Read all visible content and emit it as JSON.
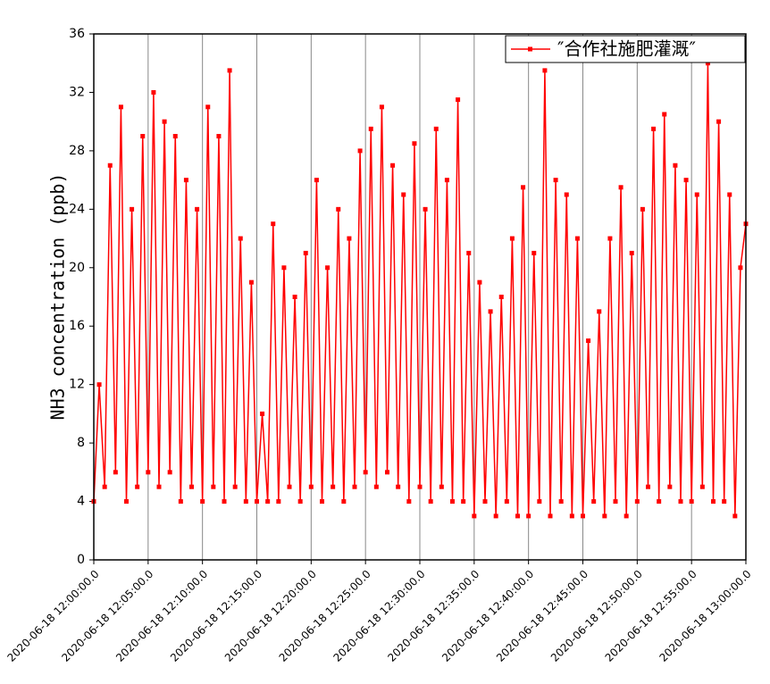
{
  "chart_data": {
    "type": "line",
    "y_label": "NH3 concentration (ppb)",
    "x": [
      "2020-06-18 12:00:00.0",
      "2020-06-18 12:00:30.0",
      "2020-06-18 12:01:00.0",
      "2020-06-18 12:01:30.0",
      "2020-06-18 12:02:00.0",
      "2020-06-18 12:02:30.0",
      "2020-06-18 12:03:00.0",
      "2020-06-18 12:03:30.0",
      "2020-06-18 12:04:00.0",
      "2020-06-18 12:04:30.0",
      "2020-06-18 12:05:00.0",
      "2020-06-18 12:05:30.0",
      "2020-06-18 12:06:00.0",
      "2020-06-18 12:06:30.0",
      "2020-06-18 12:07:00.0",
      "2020-06-18 12:07:30.0",
      "2020-06-18 12:08:00.0",
      "2020-06-18 12:08:30.0",
      "2020-06-18 12:09:00.0",
      "2020-06-18 12:09:30.0",
      "2020-06-18 12:10:00.0",
      "2020-06-18 12:10:30.0",
      "2020-06-18 12:11:00.0",
      "2020-06-18 12:11:30.0",
      "2020-06-18 12:12:00.0",
      "2020-06-18 12:12:30.0",
      "2020-06-18 12:13:00.0",
      "2020-06-18 12:13:30.0",
      "2020-06-18 12:14:00.0",
      "2020-06-18 12:14:30.0",
      "2020-06-18 12:15:00.0",
      "2020-06-18 12:15:30.0",
      "2020-06-18 12:16:00.0",
      "2020-06-18 12:16:30.0",
      "2020-06-18 12:17:00.0",
      "2020-06-18 12:17:30.0",
      "2020-06-18 12:18:00.0",
      "2020-06-18 12:18:30.0",
      "2020-06-18 12:19:00.0",
      "2020-06-18 12:19:30.0",
      "2020-06-18 12:20:00.0",
      "2020-06-18 12:20:30.0",
      "2020-06-18 12:21:00.0",
      "2020-06-18 12:21:30.0",
      "2020-06-18 12:22:00.0",
      "2020-06-18 12:22:30.0",
      "2020-06-18 12:23:00.0",
      "2020-06-18 12:23:30.0",
      "2020-06-18 12:24:00.0",
      "2020-06-18 12:24:30.0",
      "2020-06-18 12:25:00.0",
      "2020-06-18 12:25:30.0",
      "2020-06-18 12:26:00.0",
      "2020-06-18 12:26:30.0",
      "2020-06-18 12:27:00.0",
      "2020-06-18 12:27:30.0",
      "2020-06-18 12:28:00.0",
      "2020-06-18 12:28:30.0",
      "2020-06-18 12:29:00.0",
      "2020-06-18 12:29:30.0",
      "2020-06-18 12:30:00.0",
      "2020-06-18 12:30:30.0",
      "2020-06-18 12:31:00.0",
      "2020-06-18 12:31:30.0",
      "2020-06-18 12:32:00.0",
      "2020-06-18 12:32:30.0",
      "2020-06-18 12:33:00.0",
      "2020-06-18 12:33:30.0",
      "2020-06-18 12:34:00.0",
      "2020-06-18 12:34:30.0",
      "2020-06-18 12:35:00.0",
      "2020-06-18 12:35:30.0",
      "2020-06-18 12:36:00.0",
      "2020-06-18 12:36:30.0",
      "2020-06-18 12:37:00.0",
      "2020-06-18 12:37:30.0",
      "2020-06-18 12:38:00.0",
      "2020-06-18 12:38:30.0",
      "2020-06-18 12:39:00.0",
      "2020-06-18 12:39:30.0",
      "2020-06-18 12:40:00.0",
      "2020-06-18 12:40:30.0",
      "2020-06-18 12:41:00.0",
      "2020-06-18 12:41:30.0",
      "2020-06-18 12:42:00.0",
      "2020-06-18 12:42:30.0",
      "2020-06-18 12:43:00.0",
      "2020-06-18 12:43:30.0",
      "2020-06-18 12:44:00.0",
      "2020-06-18 12:44:30.0",
      "2020-06-18 12:45:00.0",
      "2020-06-18 12:45:30.0",
      "2020-06-18 12:46:00.0",
      "2020-06-18 12:46:30.0",
      "2020-06-18 12:47:00.0",
      "2020-06-18 12:47:30.0",
      "2020-06-18 12:48:00.0",
      "2020-06-18 12:48:30.0",
      "2020-06-18 12:49:00.0",
      "2020-06-18 12:49:30.0",
      "2020-06-18 12:50:00.0",
      "2020-06-18 12:50:30.0",
      "2020-06-18 12:51:00.0",
      "2020-06-18 12:51:30.0",
      "2020-06-18 12:52:00.0",
      "2020-06-18 12:52:30.0",
      "2020-06-18 12:53:00.0",
      "2020-06-18 12:53:30.0",
      "2020-06-18 12:54:00.0",
      "2020-06-18 12:54:30.0",
      "2020-06-18 12:55:00.0",
      "2020-06-18 12:55:30.0",
      "2020-06-18 12:56:00.0",
      "2020-06-18 12:56:30.0",
      "2020-06-18 12:57:00.0",
      "2020-06-18 12:57:30.0",
      "2020-06-18 12:58:00.0",
      "2020-06-18 12:58:30.0",
      "2020-06-18 12:59:00.0",
      "2020-06-18 12:59:30.0",
      "2020-06-18 13:00:00.0"
    ],
    "series": [
      {
        "name": "″合作社施肥灌溉″",
        "color": "#ff0000",
        "values": [
          4,
          12,
          5,
          27,
          6,
          31,
          4,
          24,
          5,
          29,
          6,
          32,
          5,
          30,
          6,
          29,
          4,
          26,
          5,
          24,
          4,
          31,
          5,
          29,
          4,
          33.5,
          5,
          22,
          4,
          19,
          4,
          10,
          4,
          23,
          4,
          20,
          5,
          18,
          4,
          21,
          5,
          26,
          4,
          20,
          5,
          24,
          4,
          22,
          5,
          28,
          6,
          29.5,
          5,
          31,
          6,
          27,
          5,
          25,
          4,
          28.5,
          5,
          24,
          4,
          29.5,
          5,
          26,
          4,
          31.5,
          4,
          21,
          3,
          19,
          4,
          17,
          3,
          18,
          4,
          22,
          3,
          25.5,
          3,
          21,
          4,
          33.5,
          3,
          26,
          4,
          25,
          3,
          22,
          3,
          15,
          4,
          17,
          3,
          22,
          4,
          25.5,
          3,
          21,
          4,
          24,
          5,
          29.5,
          4,
          30.5,
          5,
          27,
          4,
          26,
          4,
          25,
          5,
          34,
          4,
          30,
          4,
          25,
          3,
          20,
          23
        ]
      }
    ],
    "xlim": [
      "2020-06-18 12:00:00.0",
      "2020-06-18 13:00:00.0"
    ],
    "xticks": [
      "2020-06-18 12:00:00.0",
      "2020-06-18 12:05:00.0",
      "2020-06-18 12:10:00.0",
      "2020-06-18 12:15:00.0",
      "2020-06-18 12:20:00.0",
      "2020-06-18 12:25:00.0",
      "2020-06-18 12:30:00.0",
      "2020-06-18 12:35:00.0",
      "2020-06-18 12:40:00.0",
      "2020-06-18 12:45:00.0",
      "2020-06-18 12:50:00.0",
      "2020-06-18 12:55:00.0",
      "2020-06-18 13:00:00.0"
    ],
    "ylim": [
      0,
      36
    ],
    "yticks": [
      0,
      4,
      8,
      12,
      16,
      20,
      24,
      28,
      32,
      36
    ],
    "grid": true,
    "legend": "upper-right"
  }
}
